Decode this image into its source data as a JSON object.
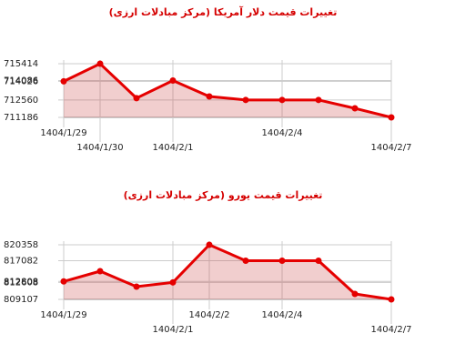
{
  "chart_data": [
    {
      "type": "line",
      "title": "تغییرات قیمت دلار آمریکا (مرکز مبادلات ارزی)",
      "categories": [
        "1404/1/29",
        "1404/1/30",
        null,
        "1404/2/1",
        null,
        null,
        "1404/2/4",
        null,
        null,
        "1404/2/7"
      ],
      "series": [
        {
          "color": "#e50000",
          "values": [
            714026,
            715414,
            712700,
            714086,
            712835,
            712560,
            712560,
            712560,
            711900,
            711186
          ]
        }
      ],
      "ylim": [
        711186,
        715414
      ],
      "yticks": [
        711186,
        712560,
        714026,
        714086,
        715414
      ],
      "grid": true,
      "area": true
    },
    {
      "type": "line",
      "title": "تغییرات قیمت یورو (مرکز مبادلات ارزی)",
      "categories": [
        "1404/1/29",
        null,
        null,
        "1404/2/1",
        "1404/2/2",
        null,
        "1404/2/4",
        null,
        null,
        "1404/2/7"
      ],
      "series": [
        {
          "color": "#e50000",
          "values": [
            812808,
            814920,
            811732,
            812608,
            820358,
            817082,
            817082,
            817082,
            810232,
            809107
          ]
        }
      ],
      "ylim": [
        809107,
        820358
      ],
      "yticks": [
        809107,
        812608,
        812808,
        817082,
        820358
      ],
      "grid": true,
      "area": true
    }
  ]
}
